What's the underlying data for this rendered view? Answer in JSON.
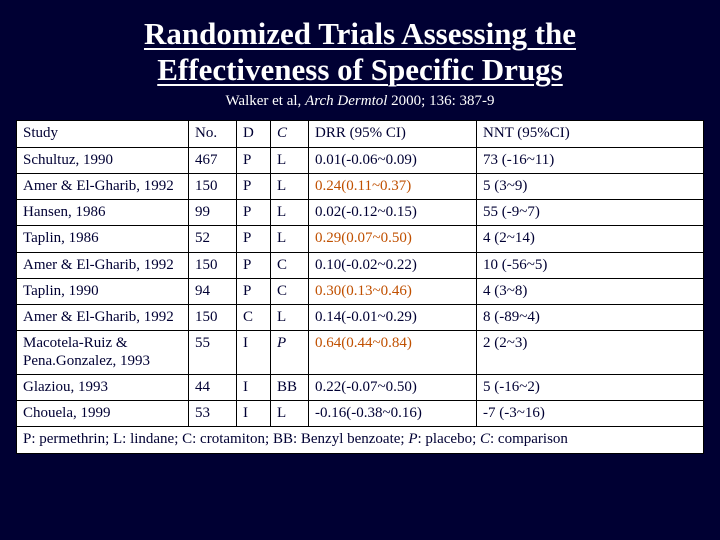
{
  "title_line1": "Randomized Trials Assessing the",
  "title_line2": "Effectiveness of Specific Drugs",
  "citation_prefix": "Walker et al, ",
  "citation_journal": "Arch Dermtol",
  "citation_suffix": " 2000; 136: 387-9",
  "headers": {
    "study": "Study",
    "no": "No.",
    "d": "D",
    "c": "C",
    "drr": "DRR (95% CI)",
    "nnt": "NNT (95%CI)"
  },
  "rows": [
    {
      "study": "Schultuz, 1990",
      "no": "467",
      "d": "P",
      "c": "L",
      "drr": "0.01(-0.06~0.09)",
      "drr_hl": false,
      "nnt": "73 (-16~11)"
    },
    {
      "study": "Amer & El-Gharib, 1992",
      "no": "150",
      "d": "P",
      "c": "L",
      "drr": "0.24(0.11~0.37)",
      "drr_hl": true,
      "nnt": "5 (3~9)"
    },
    {
      "study": "Hansen, 1986",
      "no": "99",
      "d": "P",
      "c": "L",
      "drr": "0.02(-0.12~0.15)",
      "drr_hl": false,
      "nnt": "55 (-9~7)"
    },
    {
      "study": "Taplin, 1986",
      "no": "52",
      "d": "P",
      "c": "L",
      "drr": "0.29(0.07~0.50)",
      "drr_hl": true,
      "nnt": "4 (2~14)"
    },
    {
      "study": "Amer & El-Gharib, 1992",
      "no": "150",
      "d": "P",
      "c": "C",
      "drr": "0.10(-0.02~0.22)",
      "drr_hl": false,
      "nnt": "10 (-56~5)"
    },
    {
      "study": "Taplin, 1990",
      "no": "94",
      "d": "P",
      "c": "C",
      "drr": "0.30(0.13~0.46)",
      "drr_hl": true,
      "nnt": "4 (3~8)"
    },
    {
      "study": "Amer & El-Gharib, 1992",
      "no": "150",
      "d": "C",
      "c": "L",
      "drr": "0.14(-0.01~0.29)",
      "drr_hl": false,
      "nnt": "8 (-89~4)"
    },
    {
      "study": "Macotela-Ruiz & Pena.Gonzalez, 1993",
      "no": "55",
      "d": "I",
      "c": "P",
      "drr": "0.64(0.44~0.84)",
      "drr_hl": true,
      "nnt": "2 (2~3)"
    },
    {
      "study": "Glaziou, 1993",
      "no": "44",
      "d": "I",
      "c": "BB",
      "drr": "0.22(-0.07~0.50)",
      "drr_hl": false,
      "nnt": "5 (-16~2)"
    },
    {
      "study": "Chouela, 1999",
      "no": "53",
      "d": "I",
      "c": "L",
      "drr": "-0.16(-0.38~0.16)",
      "drr_hl": false,
      "nnt": "-7 (-3~16)"
    }
  ],
  "footnote_p": "P: permethrin; L: lindane; C: crotamiton; BB: Benzyl benzoate; ",
  "footnote_p_ital": "P",
  "footnote_mid": ": placebo; ",
  "footnote_c_ital": "C",
  "footnote_end": ": comparison",
  "colors": {
    "background": "#000033",
    "table_bg": "#ffffff",
    "text": "#000033",
    "title": "#ffffff",
    "border": "#000000",
    "highlight": "#c05000"
  }
}
